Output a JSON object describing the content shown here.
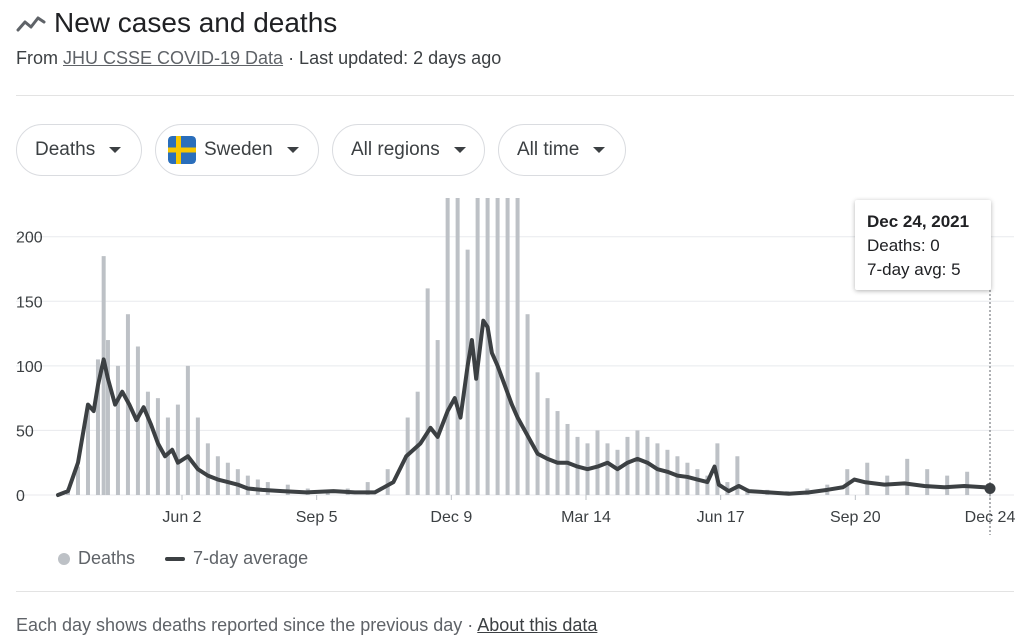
{
  "header": {
    "title": "New cases and deaths",
    "icon": "trending-icon"
  },
  "subtitle": {
    "prefix": "From ",
    "source": "JHU CSSE COVID-19 Data",
    "updated": " · Last updated: 2 days ago"
  },
  "filters": [
    {
      "label": "Deaths"
    },
    {
      "label": "Sweden",
      "flag": "sweden-flag"
    },
    {
      "label": "All regions"
    },
    {
      "label": "All time"
    }
  ],
  "tooltip": {
    "date": "Dec 24, 2021",
    "deaths": "Deaths: 0",
    "avg": "7-day avg: 5"
  },
  "legend": {
    "bars": "Deaths",
    "line": "7-day average"
  },
  "footer": {
    "note": "Each day shows deaths reported since the previous day",
    "sep": " · ",
    "link": "About this data"
  },
  "colors": {
    "bar": "#bdc1c6",
    "line": "#3c4043",
    "grid": "#e8eaed"
  },
  "chart_data": {
    "type": "bar",
    "yticks": [
      0,
      50,
      100,
      150,
      200
    ],
    "ylim": [
      0,
      230
    ],
    "xtick_labels": [
      "Jun 2",
      "Sep 5",
      "Dec 9",
      "Mar 14",
      "Jun 17",
      "Sep 20",
      "Dec 24"
    ],
    "grid": true,
    "legend_position": "bottom-left",
    "series": [
      {
        "name": "Deaths",
        "type": "bar",
        "points": [
          [
            "2020-03-11",
            0
          ],
          [
            "2020-03-18",
            5
          ],
          [
            "2020-03-25",
            22
          ],
          [
            "2020-04-01",
            70
          ],
          [
            "2020-04-08",
            105
          ],
          [
            "2020-04-12",
            185
          ],
          [
            "2020-04-15",
            120
          ],
          [
            "2020-04-22",
            100
          ],
          [
            "2020-04-29",
            140
          ],
          [
            "2020-05-06",
            115
          ],
          [
            "2020-05-13",
            80
          ],
          [
            "2020-05-20",
            75
          ],
          [
            "2020-05-27",
            60
          ],
          [
            "2020-06-03",
            70
          ],
          [
            "2020-06-10",
            100
          ],
          [
            "2020-06-17",
            60
          ],
          [
            "2020-06-24",
            40
          ],
          [
            "2020-07-01",
            30
          ],
          [
            "2020-07-08",
            25
          ],
          [
            "2020-07-15",
            20
          ],
          [
            "2020-07-22",
            15
          ],
          [
            "2020-07-29",
            12
          ],
          [
            "2020-08-05",
            10
          ],
          [
            "2020-08-19",
            8
          ],
          [
            "2020-09-02",
            5
          ],
          [
            "2020-09-16",
            4
          ],
          [
            "2020-09-30",
            5
          ],
          [
            "2020-10-14",
            10
          ],
          [
            "2020-10-28",
            20
          ],
          [
            "2020-11-11",
            60
          ],
          [
            "2020-11-18",
            80
          ],
          [
            "2020-11-25",
            160
          ],
          [
            "2020-12-02",
            120
          ],
          [
            "2020-12-09",
            230
          ],
          [
            "2020-12-16",
            230
          ],
          [
            "2020-12-23",
            190
          ],
          [
            "2020-12-30",
            230
          ],
          [
            "2021-01-06",
            230
          ],
          [
            "2021-01-13",
            230
          ],
          [
            "2021-01-20",
            230
          ],
          [
            "2021-01-27",
            230
          ],
          [
            "2021-02-03",
            140
          ],
          [
            "2021-02-10",
            95
          ],
          [
            "2021-02-17",
            75
          ],
          [
            "2021-02-24",
            65
          ],
          [
            "2021-03-03",
            55
          ],
          [
            "2021-03-10",
            45
          ],
          [
            "2021-03-17",
            40
          ],
          [
            "2021-03-24",
            50
          ],
          [
            "2021-03-31",
            40
          ],
          [
            "2021-04-07",
            35
          ],
          [
            "2021-04-14",
            45
          ],
          [
            "2021-04-21",
            50
          ],
          [
            "2021-04-28",
            45
          ],
          [
            "2021-05-05",
            40
          ],
          [
            "2021-05-12",
            35
          ],
          [
            "2021-05-19",
            30
          ],
          [
            "2021-05-26",
            25
          ],
          [
            "2021-06-02",
            20
          ],
          [
            "2021-06-09",
            15
          ],
          [
            "2021-06-16",
            40
          ],
          [
            "2021-06-23",
            10
          ],
          [
            "2021-06-30",
            30
          ],
          [
            "2021-07-07",
            5
          ],
          [
            "2021-07-21",
            4
          ],
          [
            "2021-08-04",
            3
          ],
          [
            "2021-08-18",
            5
          ],
          [
            "2021-09-01",
            8
          ],
          [
            "2021-09-15",
            20
          ],
          [
            "2021-09-29",
            25
          ],
          [
            "2021-10-13",
            15
          ],
          [
            "2021-10-27",
            28
          ],
          [
            "2021-11-10",
            20
          ],
          [
            "2021-11-24",
            15
          ],
          [
            "2021-12-08",
            18
          ],
          [
            "2021-12-24",
            0
          ]
        ]
      },
      {
        "name": "7-day average",
        "type": "line",
        "points": [
          [
            "2020-03-11",
            0
          ],
          [
            "2020-03-18",
            3
          ],
          [
            "2020-03-25",
            25
          ],
          [
            "2020-04-01",
            70
          ],
          [
            "2020-04-05",
            65
          ],
          [
            "2020-04-08",
            85
          ],
          [
            "2020-04-12",
            105
          ],
          [
            "2020-04-15",
            90
          ],
          [
            "2020-04-20",
            70
          ],
          [
            "2020-04-25",
            80
          ],
          [
            "2020-04-30",
            70
          ],
          [
            "2020-05-05",
            58
          ],
          [
            "2020-05-10",
            68
          ],
          [
            "2020-05-15",
            55
          ],
          [
            "2020-05-20",
            40
          ],
          [
            "2020-05-25",
            30
          ],
          [
            "2020-05-30",
            35
          ],
          [
            "2020-06-03",
            25
          ],
          [
            "2020-06-10",
            30
          ],
          [
            "2020-06-17",
            20
          ],
          [
            "2020-06-24",
            15
          ],
          [
            "2020-07-01",
            12
          ],
          [
            "2020-07-08",
            10
          ],
          [
            "2020-07-15",
            8
          ],
          [
            "2020-07-22",
            5
          ],
          [
            "2020-08-01",
            4
          ],
          [
            "2020-08-15",
            3
          ],
          [
            "2020-09-01",
            2
          ],
          [
            "2020-09-20",
            3
          ],
          [
            "2020-10-05",
            2
          ],
          [
            "2020-10-19",
            2
          ],
          [
            "2020-11-01",
            10
          ],
          [
            "2020-11-10",
            30
          ],
          [
            "2020-11-20",
            40
          ],
          [
            "2020-11-27",
            52
          ],
          [
            "2020-12-02",
            45
          ],
          [
            "2020-12-09",
            65
          ],
          [
            "2020-12-14",
            75
          ],
          [
            "2020-12-18",
            60
          ],
          [
            "2020-12-23",
            100
          ],
          [
            "2020-12-26",
            120
          ],
          [
            "2020-12-29",
            90
          ],
          [
            "2021-01-03",
            135
          ],
          [
            "2021-01-06",
            130
          ],
          [
            "2021-01-09",
            110
          ],
          [
            "2021-01-13",
            100
          ],
          [
            "2021-01-18",
            85
          ],
          [
            "2021-01-23",
            70
          ],
          [
            "2021-01-27",
            60
          ],
          [
            "2021-02-01",
            50
          ],
          [
            "2021-02-06",
            40
          ],
          [
            "2021-02-10",
            32
          ],
          [
            "2021-02-17",
            28
          ],
          [
            "2021-02-24",
            25
          ],
          [
            "2021-03-03",
            25
          ],
          [
            "2021-03-10",
            22
          ],
          [
            "2021-03-17",
            20
          ],
          [
            "2021-03-24",
            22
          ],
          [
            "2021-03-31",
            25
          ],
          [
            "2021-04-07",
            20
          ],
          [
            "2021-04-14",
            25
          ],
          [
            "2021-04-21",
            28
          ],
          [
            "2021-04-28",
            25
          ],
          [
            "2021-05-05",
            20
          ],
          [
            "2021-05-12",
            18
          ],
          [
            "2021-05-19",
            15
          ],
          [
            "2021-05-26",
            14
          ],
          [
            "2021-06-02",
            12
          ],
          [
            "2021-06-09",
            10
          ],
          [
            "2021-06-14",
            22
          ],
          [
            "2021-06-17",
            8
          ],
          [
            "2021-06-24",
            3
          ],
          [
            "2021-07-01",
            7
          ],
          [
            "2021-07-08",
            3
          ],
          [
            "2021-07-22",
            2
          ],
          [
            "2021-08-05",
            1
          ],
          [
            "2021-08-19",
            2
          ],
          [
            "2021-09-01",
            4
          ],
          [
            "2021-09-12",
            6
          ],
          [
            "2021-09-20",
            12
          ],
          [
            "2021-09-27",
            10
          ],
          [
            "2021-10-11",
            8
          ],
          [
            "2021-10-25",
            9
          ],
          [
            "2021-11-08",
            7
          ],
          [
            "2021-11-22",
            6
          ],
          [
            "2021-12-06",
            7
          ],
          [
            "2021-12-20",
            6
          ],
          [
            "2021-12-24",
            5
          ]
        ]
      }
    ]
  }
}
